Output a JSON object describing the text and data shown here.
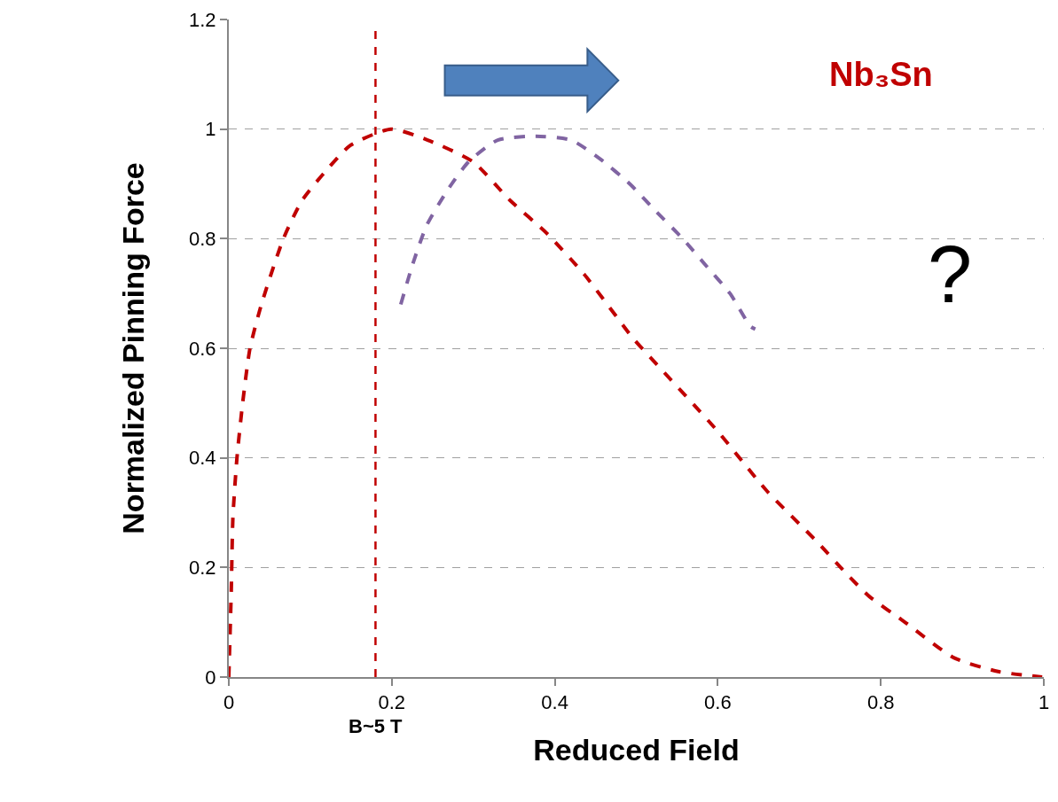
{
  "chart_data": {
    "type": "line",
    "xlabel": "Reduced Field",
    "ylabel": "Normalized Pinning Force",
    "series": [
      {
        "color": "#c00000",
        "x": [
          0.0,
          0.003,
          0.005,
          0.01,
          0.017,
          0.026,
          0.04,
          0.067,
          0.09,
          0.117,
          0.149,
          0.199,
          0.244,
          0.3,
          0.345,
          0.39,
          0.436,
          0.495,
          0.507,
          0.599,
          0.66,
          0.723,
          0.757,
          0.786,
          0.827,
          0.89,
          0.944,
          0.998
        ],
        "values": [
          0.0,
          0.157,
          0.29,
          0.4,
          0.5,
          0.6,
          0.68,
          0.8,
          0.87,
          0.92,
          0.97,
          1.0,
          0.98,
          0.94,
          0.87,
          0.81,
          0.735,
          0.62,
          0.6,
          0.45,
          0.34,
          0.245,
          0.19,
          0.147,
          0.103,
          0.035,
          0.01,
          0.0
        ]
      },
      {
        "color": "#8064a2",
        "x": [
          0.211,
          0.226,
          0.243,
          0.269,
          0.294,
          0.33,
          0.377,
          0.42,
          0.456,
          0.492,
          0.524,
          0.557,
          0.586,
          0.615,
          0.64,
          0.646
        ],
        "values": [
          0.68,
          0.755,
          0.825,
          0.89,
          0.94,
          0.98,
          0.987,
          0.98,
          0.945,
          0.9,
          0.85,
          0.8,
          0.75,
          0.7,
          0.64,
          0.635
        ]
      }
    ],
    "line_style": "dashed",
    "marker": "none",
    "xlim": [
      0,
      1
    ],
    "xticks": [
      0,
      0.2,
      0.4,
      0.6,
      0.8,
      1
    ],
    "ylim": [
      0,
      1.2
    ],
    "yticks": [
      0,
      0.2,
      0.4,
      0.6,
      0.8,
      1,
      1.2
    ],
    "grid": "y",
    "ref_lines": [
      {
        "axis": "x",
        "value": 0.18,
        "label": "B~5 T",
        "color": "#c00000",
        "line_style": "dashed"
      }
    ],
    "annotations": [
      "Nb₃Sn",
      "?"
    ]
  }
}
